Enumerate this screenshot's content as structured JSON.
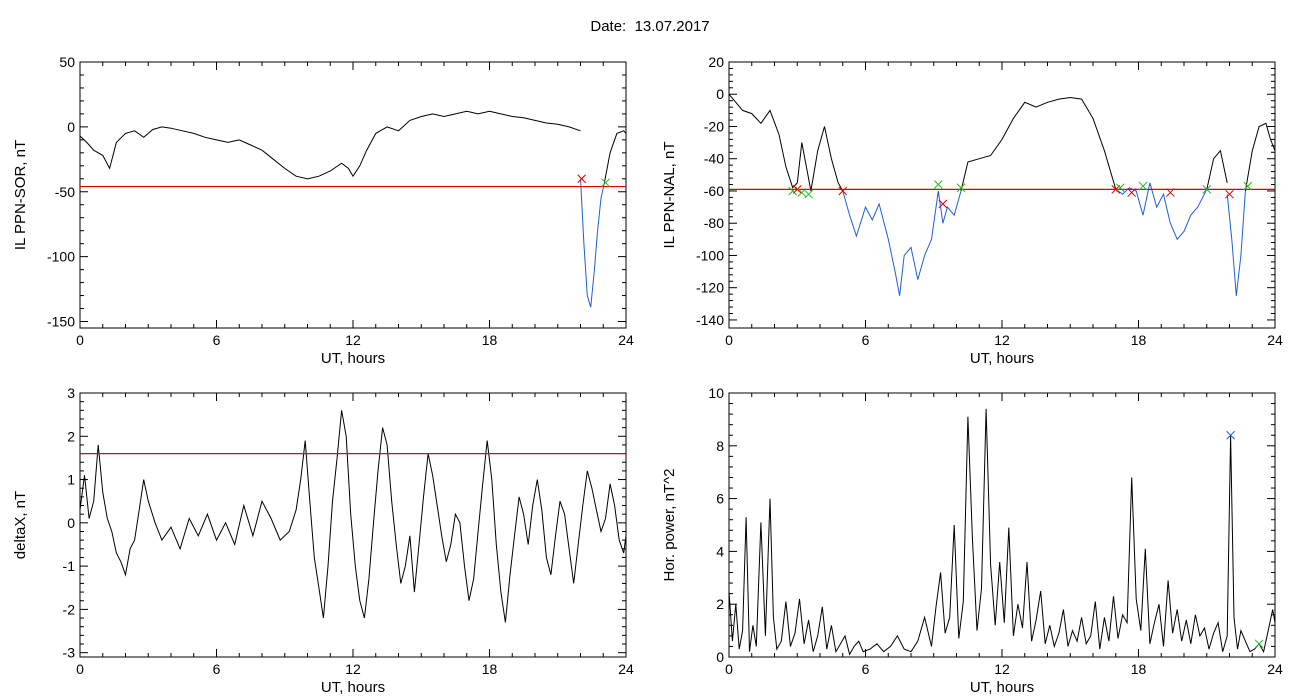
{
  "header": {
    "label": "Date:",
    "date": "13.07.2017"
  },
  "colors": {
    "black": "#000000",
    "threshold": "#e00000",
    "blue": "#1f5fd6",
    "green": "#22bb22",
    "red_marker": "#e00000"
  },
  "chart_data": [
    {
      "type": "line",
      "ylabel": "IL PPN-SOR, nT",
      "xlabel": "UT, hours",
      "xlim": [
        0,
        24
      ],
      "ylim": [
        -155,
        50
      ],
      "xticks": [
        0,
        6,
        12,
        18,
        24
      ],
      "yticks": [
        -150,
        -100,
        -50,
        0,
        50
      ],
      "threshold": -46,
      "series": [
        {
          "color_key": "black",
          "x": [
            0,
            0.3,
            0.6,
            1.0,
            1.3,
            1.6,
            2.0,
            2.4,
            2.8,
            3.2,
            3.6,
            4.0,
            4.5,
            5.0,
            5.5,
            6.0,
            6.5,
            7.0,
            7.5,
            8.0,
            8.5,
            9.0,
            9.5,
            10.0,
            10.5,
            11.0,
            11.5,
            11.8,
            12.0,
            12.3,
            12.6,
            13.0,
            13.5,
            14.0,
            14.5,
            15.0,
            15.5,
            16.0,
            16.5,
            17.0,
            17.5,
            18.0,
            18.5,
            19.0,
            19.5,
            20.0,
            20.5,
            21.0,
            21.5,
            22.0
          ],
          "y": [
            -7,
            -12,
            -18,
            -22,
            -32,
            -12,
            -5,
            -3,
            -8,
            -2,
            0,
            -1,
            -3,
            -5,
            -8,
            -10,
            -12,
            -10,
            -14,
            -18,
            -25,
            -32,
            -38,
            -40,
            -38,
            -34,
            -28,
            -32,
            -38,
            -30,
            -18,
            -5,
            0,
            -3,
            5,
            8,
            10,
            8,
            10,
            12,
            10,
            12,
            10,
            8,
            7,
            5,
            3,
            2,
            0,
            -3
          ]
        },
        {
          "color_key": "blue",
          "x": [
            22.0,
            22.15,
            22.3,
            22.45,
            22.6,
            22.75,
            22.9,
            23.05
          ],
          "y": [
            -40,
            -90,
            -130,
            -139,
            -112,
            -80,
            -55,
            -43
          ]
        },
        {
          "color_key": "black",
          "x": [
            23.05,
            23.3,
            23.6,
            23.9,
            24.0
          ],
          "y": [
            -43,
            -20,
            -5,
            -3,
            -5
          ]
        }
      ],
      "markers": [
        {
          "x": 22.05,
          "y": -40,
          "color_key": "red_marker"
        },
        {
          "x": 23.1,
          "y": -43,
          "color_key": "green"
        }
      ]
    },
    {
      "type": "line",
      "ylabel": "IL PPN-NAL, nT",
      "xlabel": "UT, hours",
      "xlim": [
        0,
        24
      ],
      "ylim": [
        -145,
        20
      ],
      "xticks": [
        0,
        6,
        12,
        18,
        24
      ],
      "yticks": [
        -140,
        -120,
        -100,
        -80,
        -60,
        -40,
        -20,
        0,
        20
      ],
      "threshold": -59,
      "series": [
        {
          "color_key": "black",
          "x": [
            0,
            0.3,
            0.6,
            1.0,
            1.4,
            1.8,
            2.2,
            2.5,
            2.8,
            3.0,
            3.2,
            3.4,
            3.6,
            3.9,
            4.2,
            4.5,
            4.8,
            5.0
          ],
          "y": [
            0,
            -5,
            -10,
            -12,
            -18,
            -10,
            -25,
            -45,
            -58,
            -55,
            -30,
            -45,
            -60,
            -35,
            -20,
            -40,
            -55,
            -60
          ]
        },
        {
          "color_key": "blue",
          "x": [
            5.0,
            5.3,
            5.6,
            6.0,
            6.3,
            6.6,
            7.0,
            7.3,
            7.5,
            7.7,
            8.0,
            8.3,
            8.6,
            8.9,
            9.2,
            9.4,
            9.6,
            9.9,
            10.2
          ],
          "y": [
            -60,
            -75,
            -88,
            -70,
            -78,
            -68,
            -90,
            -110,
            -125,
            -100,
            -95,
            -115,
            -100,
            -90,
            -60,
            -80,
            -70,
            -75,
            -60
          ]
        },
        {
          "color_key": "black",
          "x": [
            10.2,
            10.5,
            11.0,
            11.5,
            12.0,
            12.5,
            13.0,
            13.5,
            14.0,
            14.5,
            15.0,
            15.5,
            16.0,
            16.5,
            17.0
          ],
          "y": [
            -60,
            -42,
            -40,
            -38,
            -28,
            -15,
            -5,
            -8,
            -5,
            -3,
            -2,
            -3,
            -15,
            -35,
            -59
          ]
        },
        {
          "color_key": "blue",
          "x": [
            17.0,
            17.3,
            17.6,
            17.9,
            18.2,
            18.5,
            18.8,
            19.1,
            19.4,
            19.7,
            20.0,
            20.3,
            20.6,
            21.0
          ],
          "y": [
            -59,
            -62,
            -58,
            -60,
            -75,
            -55,
            -70,
            -62,
            -80,
            -90,
            -85,
            -75,
            -70,
            -59
          ]
        },
        {
          "color_key": "black",
          "x": [
            21.0,
            21.3,
            21.6,
            21.9
          ],
          "y": [
            -59,
            -40,
            -35,
            -55
          ]
        },
        {
          "color_key": "blue",
          "x": [
            21.9,
            22.1,
            22.3,
            22.5,
            22.7
          ],
          "y": [
            -62,
            -90,
            -125,
            -100,
            -60
          ]
        },
        {
          "color_key": "black",
          "x": [
            22.7,
            23.0,
            23.3,
            23.6,
            23.8,
            24.0
          ],
          "y": [
            -60,
            -35,
            -20,
            -18,
            -28,
            -35
          ]
        }
      ],
      "markers": [
        {
          "x": 2.8,
          "y": -60,
          "color_key": "green"
        },
        {
          "x": 3.0,
          "y": -59,
          "color_key": "red_marker"
        },
        {
          "x": 3.2,
          "y": -61,
          "color_key": "green"
        },
        {
          "x": 3.5,
          "y": -62,
          "color_key": "green"
        },
        {
          "x": 5.0,
          "y": -60,
          "color_key": "red_marker"
        },
        {
          "x": 9.2,
          "y": -56,
          "color_key": "green"
        },
        {
          "x": 9.4,
          "y": -68,
          "color_key": "red_marker"
        },
        {
          "x": 10.2,
          "y": -58,
          "color_key": "green"
        },
        {
          "x": 17.0,
          "y": -59,
          "color_key": "red_marker"
        },
        {
          "x": 17.2,
          "y": -58,
          "color_key": "green"
        },
        {
          "x": 17.7,
          "y": -61,
          "color_key": "red_marker"
        },
        {
          "x": 18.2,
          "y": -57,
          "color_key": "green"
        },
        {
          "x": 19.4,
          "y": -61,
          "color_key": "red_marker"
        },
        {
          "x": 21.0,
          "y": -59,
          "color_key": "green"
        },
        {
          "x": 22.0,
          "y": -62,
          "color_key": "red_marker"
        },
        {
          "x": 22.8,
          "y": -57,
          "color_key": "green"
        }
      ]
    },
    {
      "type": "line",
      "ylabel": "deltaX, nT",
      "xlabel": "UT, hours",
      "xlim": [
        0,
        24
      ],
      "ylim": [
        -3.1,
        3
      ],
      "xticks": [
        0,
        6,
        12,
        18,
        24
      ],
      "yticks": [
        -3,
        -2,
        -1,
        0,
        1,
        2,
        3
      ],
      "threshold": 1.6,
      "series": [
        {
          "color_key": "black",
          "x": [
            0,
            0.2,
            0.4,
            0.6,
            0.8,
            1.0,
            1.2,
            1.4,
            1.6,
            1.8,
            2.0,
            2.2,
            2.4,
            2.6,
            2.8,
            3.0,
            3.3,
            3.6,
            4.0,
            4.4,
            4.8,
            5.2,
            5.6,
            6.0,
            6.4,
            6.8,
            7.2,
            7.6,
            8.0,
            8.4,
            8.8,
            9.2,
            9.5,
            9.7,
            9.9,
            10.1,
            10.3,
            10.5,
            10.7,
            10.9,
            11.1,
            11.3,
            11.5,
            11.7,
            11.9,
            12.1,
            12.3,
            12.5,
            12.7,
            12.9,
            13.1,
            13.3,
            13.5,
            13.7,
            13.9,
            14.1,
            14.3,
            14.5,
            14.7,
            14.9,
            15.1,
            15.3,
            15.5,
            15.7,
            15.9,
            16.1,
            16.3,
            16.5,
            16.7,
            16.9,
            17.1,
            17.3,
            17.5,
            17.7,
            17.9,
            18.1,
            18.3,
            18.5,
            18.7,
            18.9,
            19.1,
            19.3,
            19.5,
            19.7,
            19.9,
            20.1,
            20.3,
            20.5,
            20.7,
            20.9,
            21.1,
            21.3,
            21.5,
            21.7,
            21.9,
            22.1,
            22.3,
            22.5,
            22.7,
            22.9,
            23.1,
            23.3,
            23.5,
            23.7,
            23.9,
            24.0
          ],
          "y": [
            0.3,
            1.1,
            0.1,
            0.5,
            1.8,
            0.7,
            0.1,
            -0.2,
            -0.7,
            -0.9,
            -1.2,
            -0.6,
            -0.4,
            0.3,
            1.0,
            0.5,
            0.0,
            -0.4,
            -0.1,
            -0.6,
            0.1,
            -0.3,
            0.2,
            -0.4,
            0.0,
            -0.5,
            0.4,
            -0.3,
            0.5,
            0.1,
            -0.4,
            -0.2,
            0.3,
            1.0,
            1.9,
            0.5,
            -0.8,
            -1.5,
            -2.2,
            -1.0,
            0.5,
            1.5,
            2.6,
            2.0,
            0.2,
            -1.0,
            -1.8,
            -2.2,
            -1.3,
            0.0,
            1.2,
            2.2,
            1.8,
            0.5,
            -0.5,
            -1.4,
            -1.0,
            -0.3,
            -1.6,
            -0.5,
            0.6,
            1.6,
            1.1,
            0.4,
            -0.3,
            -0.9,
            -0.5,
            0.2,
            0.0,
            -1.0,
            -1.8,
            -1.3,
            -0.2,
            0.9,
            1.9,
            1.0,
            -0.5,
            -1.6,
            -2.3,
            -1.2,
            -0.3,
            0.6,
            0.2,
            -0.5,
            0.4,
            1.0,
            0.3,
            -0.8,
            -1.2,
            -0.3,
            0.5,
            0.2,
            -0.6,
            -1.4,
            -0.5,
            0.4,
            1.2,
            0.8,
            0.3,
            -0.2,
            0.1,
            0.9,
            0.4,
            -0.4,
            -0.7,
            -0.3
          ]
        }
      ]
    },
    {
      "type": "line",
      "ylabel": "Hor. power, nT^2",
      "xlabel": "UT, hours",
      "xlim": [
        0,
        24
      ],
      "ylim": [
        0,
        10
      ],
      "xticks": [
        0,
        6,
        12,
        18,
        24
      ],
      "yticks": [
        0,
        2,
        4,
        6,
        8,
        10
      ],
      "series": [
        {
          "color_key": "black",
          "x": [
            0,
            0.15,
            0.3,
            0.45,
            0.6,
            0.75,
            0.9,
            1.05,
            1.2,
            1.4,
            1.6,
            1.8,
            1.95,
            2.1,
            2.3,
            2.5,
            2.7,
            2.9,
            3.1,
            3.3,
            3.5,
            3.7,
            3.9,
            4.1,
            4.3,
            4.5,
            4.7,
            4.9,
            5.1,
            5.3,
            5.5,
            5.7,
            5.9,
            6.2,
            6.5,
            6.8,
            7.1,
            7.4,
            7.7,
            8.0,
            8.3,
            8.6,
            8.9,
            9.1,
            9.3,
            9.5,
            9.7,
            9.9,
            10.1,
            10.3,
            10.5,
            10.7,
            10.9,
            11.1,
            11.3,
            11.5,
            11.7,
            11.9,
            12.1,
            12.3,
            12.5,
            12.7,
            12.9,
            13.1,
            13.3,
            13.5,
            13.7,
            13.9,
            14.1,
            14.3,
            14.5,
            14.7,
            14.9,
            15.1,
            15.3,
            15.5,
            15.7,
            15.9,
            16.1,
            16.3,
            16.5,
            16.7,
            16.9,
            17.1,
            17.3,
            17.5,
            17.7,
            17.9,
            18.1,
            18.3,
            18.5,
            18.7,
            18.9,
            19.1,
            19.3,
            19.5,
            19.7,
            19.9,
            20.1,
            20.3,
            20.5,
            20.7,
            20.9,
            21.1,
            21.3,
            21.5,
            21.7,
            21.9,
            22.05,
            22.2,
            22.35,
            22.5,
            22.7,
            22.9,
            23.1,
            23.3,
            23.5,
            23.7,
            23.9,
            24.0
          ],
          "y": [
            2.5,
            0.6,
            2.0,
            0.3,
            1.0,
            5.3,
            0.2,
            1.2,
            0.4,
            5.1,
            0.8,
            6.0,
            1.5,
            0.3,
            0.6,
            2.1,
            0.4,
            0.9,
            2.2,
            0.5,
            1.4,
            0.2,
            0.8,
            1.9,
            0.3,
            1.2,
            0.2,
            0.5,
            0.8,
            0.1,
            0.4,
            0.6,
            0.2,
            0.3,
            0.5,
            0.2,
            0.4,
            0.8,
            0.3,
            0.2,
            0.6,
            1.5,
            0.4,
            1.9,
            3.2,
            0.9,
            1.5,
            5.0,
            0.7,
            2.1,
            9.1,
            4.5,
            1.0,
            2.6,
            9.4,
            3.5,
            1.2,
            3.6,
            1.3,
            4.9,
            0.8,
            2.0,
            1.1,
            3.6,
            0.6,
            1.4,
            2.5,
            0.5,
            1.2,
            0.4,
            0.9,
            1.8,
            0.4,
            1.0,
            0.6,
            1.5,
            0.5,
            0.8,
            2.1,
            0.3,
            1.5,
            0.6,
            2.3,
            0.7,
            1.6,
            1.3,
            6.8,
            2.2,
            1.0,
            4.1,
            0.5,
            1.3,
            2.0,
            0.4,
            2.9,
            0.9,
            1.8,
            0.6,
            1.4,
            0.5,
            1.6,
            0.8,
            1.1,
            0.3,
            0.9,
            1.3,
            0.2,
            0.8,
            8.4,
            1.5,
            0.3,
            1.0,
            0.6,
            0.2,
            0.3,
            0.5,
            0.2,
            1.0,
            1.8,
            1.3
          ]
        }
      ],
      "markers": [
        {
          "x": 22.05,
          "y": 8.4,
          "color_key": "blue"
        },
        {
          "x": 23.3,
          "y": 0.5,
          "color_key": "green"
        }
      ]
    }
  ]
}
